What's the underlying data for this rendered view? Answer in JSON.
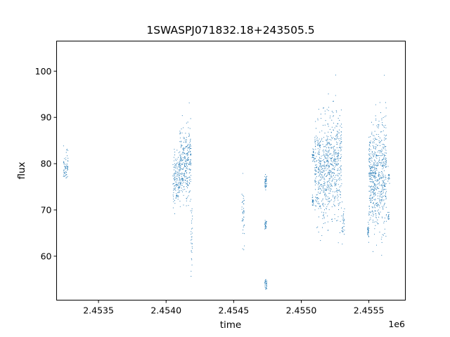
{
  "chart_data": {
    "type": "scatter",
    "title": "1SWASPJ071832.18+243505.5",
    "xlabel": "time",
    "ylabel": "flux",
    "x_offset_label": "1e6",
    "xlim": [
      2453190,
      2455770
    ],
    "ylim": [
      50.5,
      106.5
    ],
    "x_ticks": [
      2453500,
      2454000,
      2454500,
      2455000,
      2455500
    ],
    "x_tick_labels": [
      "2.4535",
      "2.4540",
      "2.4545",
      "2.4550",
      "2.4555"
    ],
    "y_ticks": [
      60,
      70,
      80,
      90,
      100
    ],
    "y_tick_labels": [
      "60",
      "70",
      "80",
      "90",
      "100"
    ],
    "grid": false,
    "point_color": "#1f77b4",
    "marker": "tiny dot",
    "clusters": [
      {
        "x_range": [
          2453240,
          2453275
        ],
        "y_mean": 79.5,
        "y_sd": 1.8,
        "n": 60
      },
      {
        "x_range": [
          2454050,
          2454100
        ],
        "y_mean": 76.5,
        "y_sd": 2.8,
        "n": 140
      },
      {
        "x_range": [
          2454100,
          2454165
        ],
        "y_mean": 79.5,
        "y_sd": 3.5,
        "n": 240
      },
      {
        "x_range": [
          2454165,
          2454185
        ],
        "y_mean": 80.0,
        "y_sd": 4.5,
        "n": 70
      },
      {
        "x_range": [
          2454180,
          2454195
        ],
        "y_mean": 63.5,
        "y_sd": 4.0,
        "n": 30
      },
      {
        "x_range": [
          2454560,
          2454580
        ],
        "y_mean": 69.5,
        "y_sd": 4.0,
        "n": 40
      },
      {
        "x_range": [
          2454730,
          2454745
        ],
        "y_mean": 76.0,
        "y_sd": 0.8,
        "n": 40
      },
      {
        "x_range": [
          2454730,
          2454745
        ],
        "y_mean": 66.8,
        "y_sd": 0.6,
        "n": 25
      },
      {
        "x_range": [
          2454730,
          2454745
        ],
        "y_mean": 54.0,
        "y_sd": 0.6,
        "n": 30
      },
      {
        "x_range": [
          2455080,
          2455095
        ],
        "y_mean": 82.0,
        "y_sd": 0.8,
        "n": 30
      },
      {
        "x_range": [
          2455080,
          2455095
        ],
        "y_mean": 71.8,
        "y_sd": 0.6,
        "n": 20
      },
      {
        "x_range": [
          2455100,
          2455200
        ],
        "y_mean": 78.0,
        "y_sd": 5.5,
        "n": 380
      },
      {
        "x_range": [
          2455200,
          2455300
        ],
        "y_mean": 80.0,
        "y_sd": 5.5,
        "n": 360
      },
      {
        "x_range": [
          2455300,
          2455320
        ],
        "y_mean": 67.0,
        "y_sd": 2.0,
        "n": 30
      },
      {
        "x_range": [
          2455490,
          2455500
        ],
        "y_mean": 65.5,
        "y_sd": 0.8,
        "n": 30
      },
      {
        "x_range": [
          2455500,
          2455550
        ],
        "y_mean": 77.0,
        "y_sd": 5.0,
        "n": 280
      },
      {
        "x_range": [
          2455550,
          2455630
        ],
        "y_mean": 78.0,
        "y_sd": 6.5,
        "n": 340
      },
      {
        "x_range": [
          2455640,
          2455650
        ],
        "y_mean": 68.5,
        "y_sd": 0.5,
        "n": 15
      },
      {
        "x_range": [
          2455640,
          2455655
        ],
        "y_mean": 77.0,
        "y_sd": 0.8,
        "n": 15
      }
    ]
  }
}
